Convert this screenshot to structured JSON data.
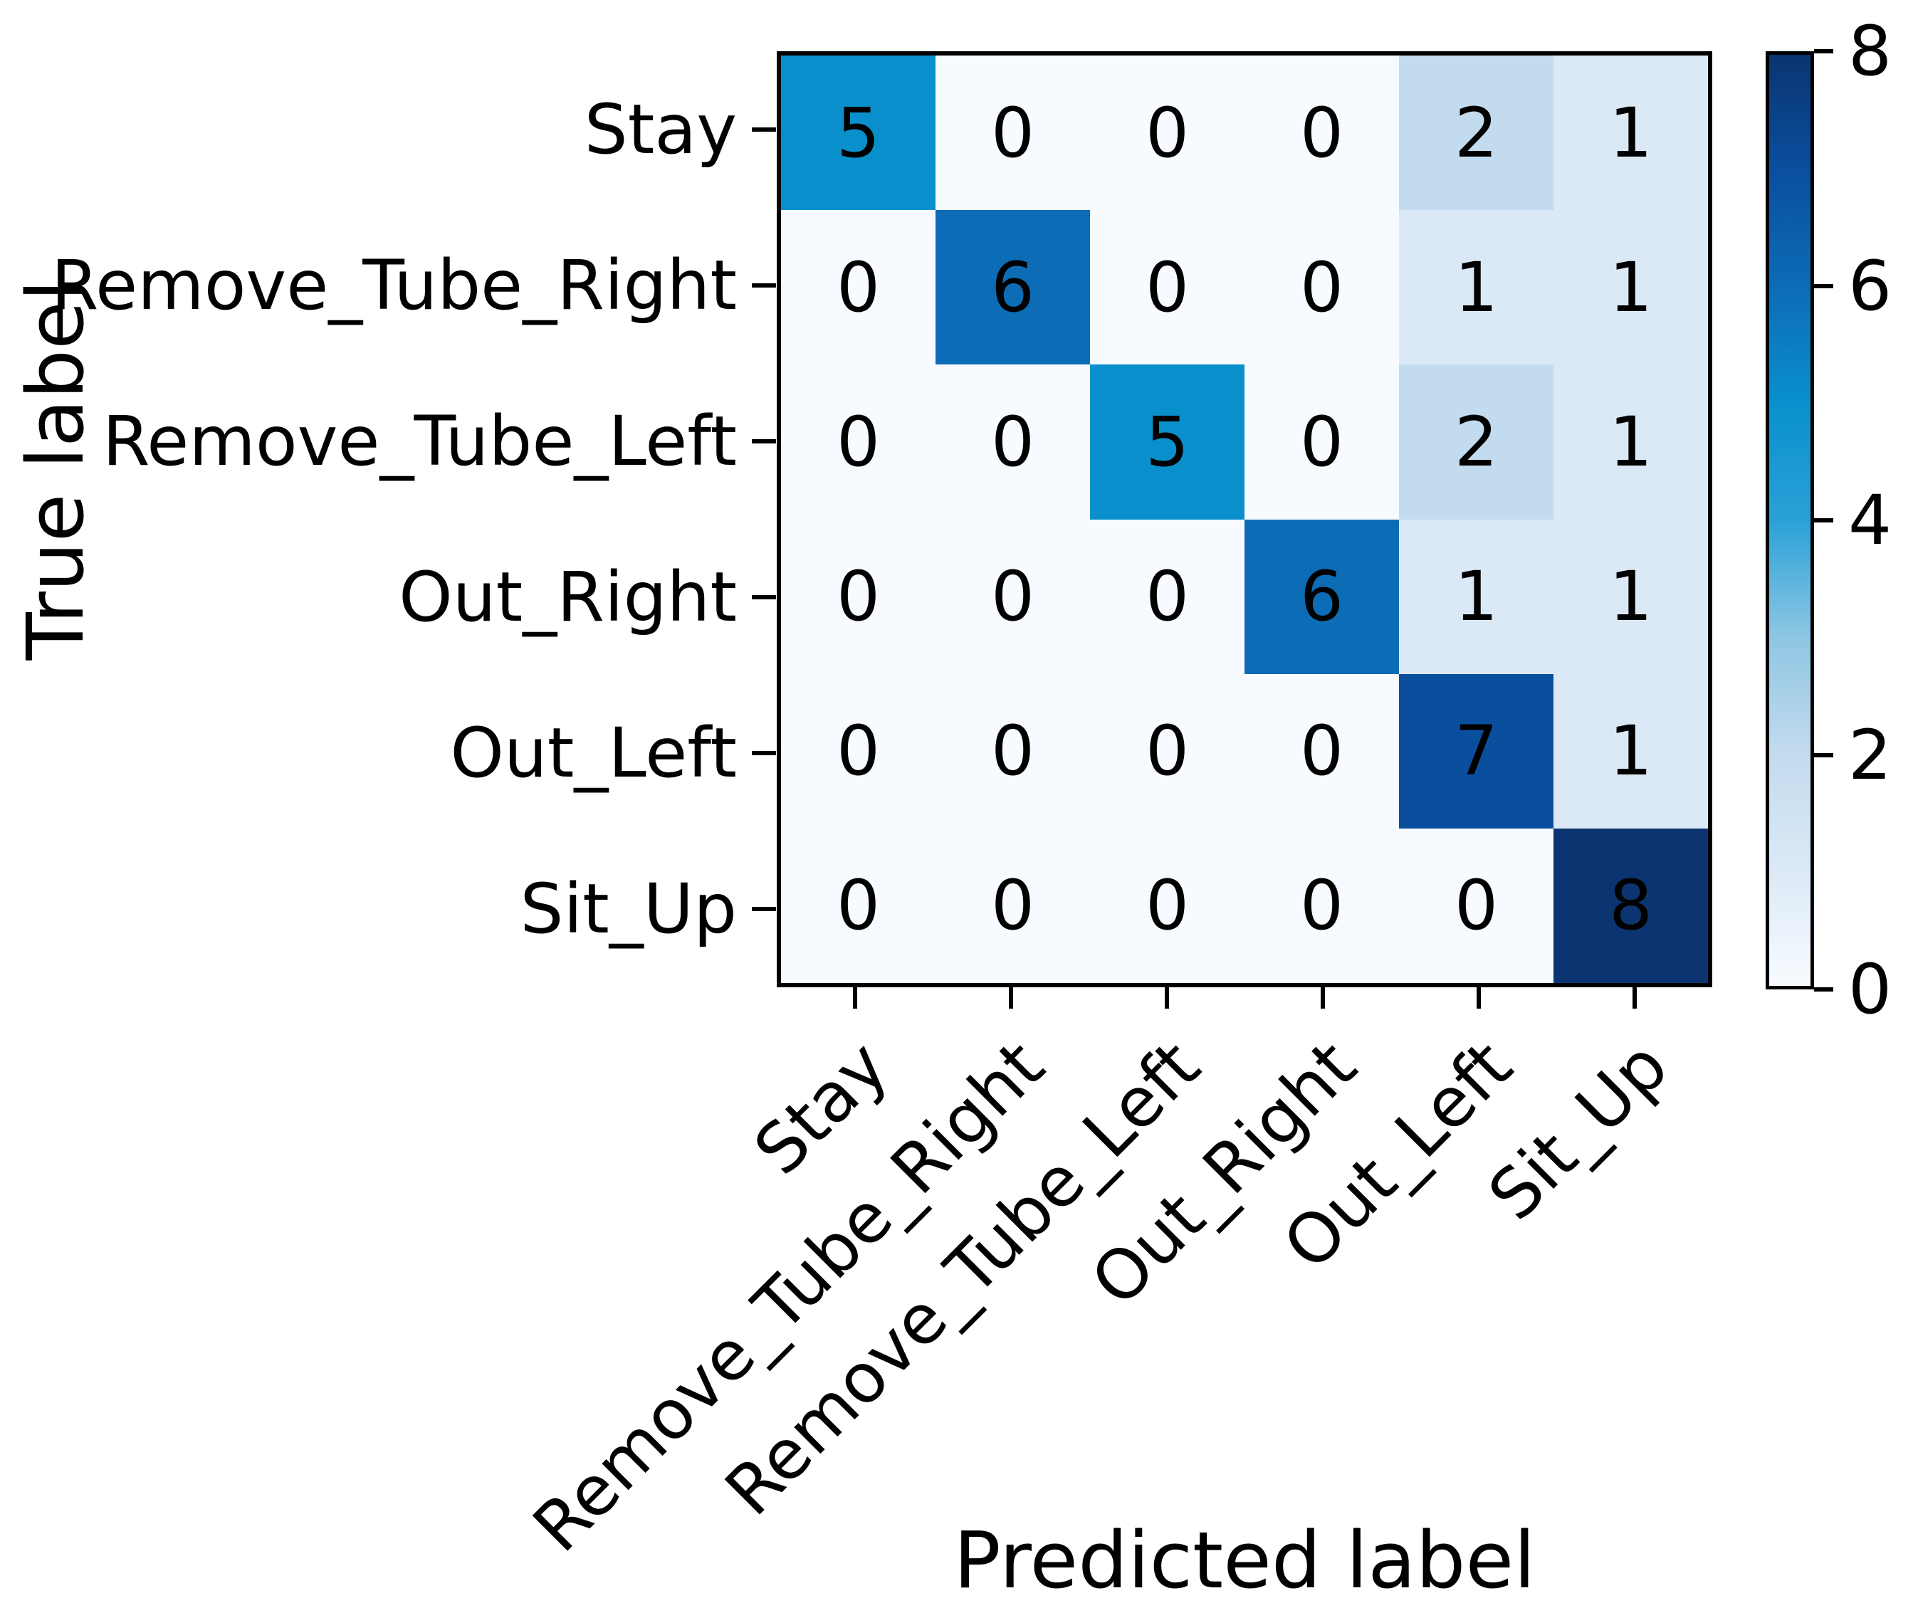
{
  "chart_data": {
    "type": "heatmap",
    "title": "",
    "xlabel": "Predicted label",
    "ylabel": "True label",
    "categories": [
      "Stay",
      "Remove_Tube_Right",
      "Remove_Tube_Left",
      "Out_Right",
      "Out_Left",
      "Sit_Up"
    ],
    "matrix": [
      [
        5,
        0,
        0,
        0,
        2,
        1
      ],
      [
        0,
        6,
        0,
        0,
        1,
        1
      ],
      [
        0,
        0,
        5,
        0,
        2,
        1
      ],
      [
        0,
        0,
        0,
        6,
        1,
        1
      ],
      [
        0,
        0,
        0,
        0,
        7,
        1
      ],
      [
        0,
        0,
        0,
        0,
        0,
        8
      ]
    ],
    "colorbar": {
      "min": 0,
      "max": 8,
      "ticks": [
        0,
        2,
        4,
        6,
        8
      ],
      "position": "right"
    },
    "palette": {
      "0": "#f7fbff",
      "1": "#dbe9f6",
      "2": "#c3dbee",
      "3": "#8ec6e3",
      "4": "#2aa1d7",
      "5": "#0990cc",
      "6": "#0d6cb6",
      "7": "#0a4f9e",
      "8": "#0b3470"
    },
    "cell_text_color": "#000000",
    "grid": false,
    "x_tick_rotation_deg": 45
  }
}
